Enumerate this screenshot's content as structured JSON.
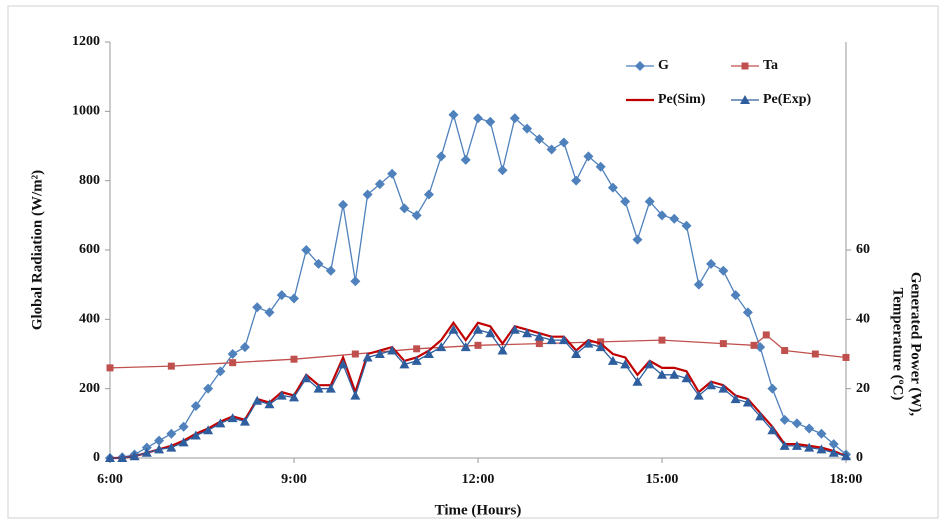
{
  "chart_data": {
    "type": "line",
    "xlabel": "Time (Hours)",
    "ylabel": "Global Radiation (W/m²)",
    "y2label": [
      "Generated Power (W),",
      "Temperature (ºC)"
    ],
    "xlim": [
      6,
      18
    ],
    "xticks": [
      {
        "value": 6,
        "label": "6:00"
      },
      {
        "value": 9,
        "label": "9:00"
      },
      {
        "value": 12,
        "label": "12:00"
      },
      {
        "value": 15,
        "label": "15:00"
      },
      {
        "value": 18,
        "label": "18:00"
      }
    ],
    "ylim": [
      0,
      1200
    ],
    "yticks": [
      0,
      200,
      400,
      600,
      800,
      1000,
      1200
    ],
    "y2lim": [
      0,
      120
    ],
    "y2ticks": [
      0,
      20,
      40,
      60
    ],
    "series": [
      {
        "name": "G",
        "color": "#4f81bd",
        "marker": "diamond",
        "axis": "y",
        "x": [
          6.0,
          6.2,
          6.4,
          6.6,
          6.8,
          7.0,
          7.2,
          7.4,
          7.6,
          7.8,
          8.0,
          8.2,
          8.4,
          8.6,
          8.8,
          9.0,
          9.2,
          9.4,
          9.6,
          9.8,
          10.0,
          10.2,
          10.4,
          10.6,
          10.8,
          11.0,
          11.2,
          11.4,
          11.6,
          11.8,
          12.0,
          12.2,
          12.4,
          12.6,
          12.8,
          13.0,
          13.2,
          13.4,
          13.6,
          13.8,
          14.0,
          14.2,
          14.4,
          14.6,
          14.8,
          15.0,
          15.2,
          15.4,
          15.6,
          15.8,
          16.0,
          16.2,
          16.4,
          16.6,
          16.8,
          17.0,
          17.2,
          17.4,
          17.6,
          17.8,
          18.0
        ],
        "values": [
          0,
          2,
          10,
          30,
          50,
          70,
          90,
          150,
          200,
          250,
          300,
          320,
          435,
          420,
          470,
          460,
          600,
          560,
          540,
          730,
          510,
          760,
          790,
          820,
          720,
          700,
          760,
          870,
          990,
          860,
          980,
          970,
          830,
          980,
          950,
          920,
          890,
          910,
          800,
          870,
          840,
          780,
          740,
          630,
          740,
          700,
          690,
          670,
          500,
          560,
          540,
          470,
          420,
          320,
          200,
          110,
          100,
          85,
          70,
          40,
          10
        ]
      },
      {
        "name": "Ta",
        "color": "#c0504d",
        "marker": "square",
        "axis": "y2",
        "x": [
          6,
          7,
          8,
          9,
          10,
          11,
          12,
          13,
          14,
          15,
          16,
          16.5,
          16.7,
          17,
          17.5,
          18
        ],
        "values": [
          26,
          26.5,
          27.5,
          28.5,
          30,
          31.5,
          32.5,
          33,
          33.5,
          34,
          33,
          32.5,
          35.5,
          31,
          30,
          29
        ]
      },
      {
        "name": "Pe(Sim)",
        "color": "#c00000",
        "marker": "none",
        "axis": "y2",
        "x": [
          6.0,
          6.2,
          6.4,
          6.6,
          6.8,
          7.0,
          7.2,
          7.4,
          7.6,
          7.8,
          8.0,
          8.2,
          8.4,
          8.6,
          8.8,
          9.0,
          9.2,
          9.4,
          9.6,
          9.8,
          10.0,
          10.2,
          10.4,
          10.6,
          10.8,
          11.0,
          11.2,
          11.4,
          11.6,
          11.8,
          12.0,
          12.2,
          12.4,
          12.6,
          12.8,
          13.0,
          13.2,
          13.4,
          13.6,
          13.8,
          14.0,
          14.2,
          14.4,
          14.6,
          14.8,
          15.0,
          15.2,
          15.4,
          15.6,
          15.8,
          16.0,
          16.2,
          16.4,
          16.6,
          16.8,
          17.0,
          17.2,
          17.4,
          17.6,
          17.8,
          18.0
        ],
        "values": [
          0,
          0,
          0.5,
          1.5,
          2.5,
          3.5,
          5,
          7,
          8.5,
          10.5,
          12,
          11,
          17,
          16,
          19,
          18,
          24,
          21,
          21,
          29,
          19,
          30,
          31,
          32,
          28,
          29,
          31,
          34,
          39,
          34,
          39,
          38,
          33,
          38,
          37,
          36,
          35,
          35,
          31,
          34,
          33,
          30,
          29,
          24,
          28,
          26,
          26,
          25,
          19,
          22,
          21,
          18,
          17,
          13,
          9,
          4,
          4,
          3.5,
          3,
          2,
          0.5
        ]
      },
      {
        "name": "Pe(Exp)",
        "color": "#2e5e9e",
        "marker": "triangle",
        "axis": "y2",
        "x": [
          6.0,
          6.2,
          6.4,
          6.6,
          6.8,
          7.0,
          7.2,
          7.4,
          7.6,
          7.8,
          8.0,
          8.2,
          8.4,
          8.6,
          8.8,
          9.0,
          9.2,
          9.4,
          9.6,
          9.8,
          10.0,
          10.2,
          10.4,
          10.6,
          10.8,
          11.0,
          11.2,
          11.4,
          11.6,
          11.8,
          12.0,
          12.2,
          12.4,
          12.6,
          12.8,
          13.0,
          13.2,
          13.4,
          13.6,
          13.8,
          14.0,
          14.2,
          14.4,
          14.6,
          14.8,
          15.0,
          15.2,
          15.4,
          15.6,
          15.8,
          16.0,
          16.2,
          16.4,
          16.6,
          16.8,
          17.0,
          17.2,
          17.4,
          17.6,
          17.8,
          18.0
        ],
        "values": [
          0,
          0,
          0.5,
          1.5,
          2.5,
          3,
          4.5,
          6.5,
          8,
          10,
          11.5,
          10.5,
          16.5,
          15.5,
          18,
          17.5,
          23,
          20,
          20,
          27,
          18,
          29,
          30,
          31,
          27,
          28,
          30,
          32,
          37,
          32,
          37,
          36,
          31,
          37,
          36,
          35,
          34,
          34,
          30,
          33,
          32,
          28,
          27,
          22,
          27,
          24,
          24,
          23,
          18,
          21,
          20,
          17,
          16,
          12,
          8,
          3.5,
          3.5,
          3,
          2.5,
          1.5,
          0.5
        ]
      }
    ],
    "legend": "upper right"
  }
}
